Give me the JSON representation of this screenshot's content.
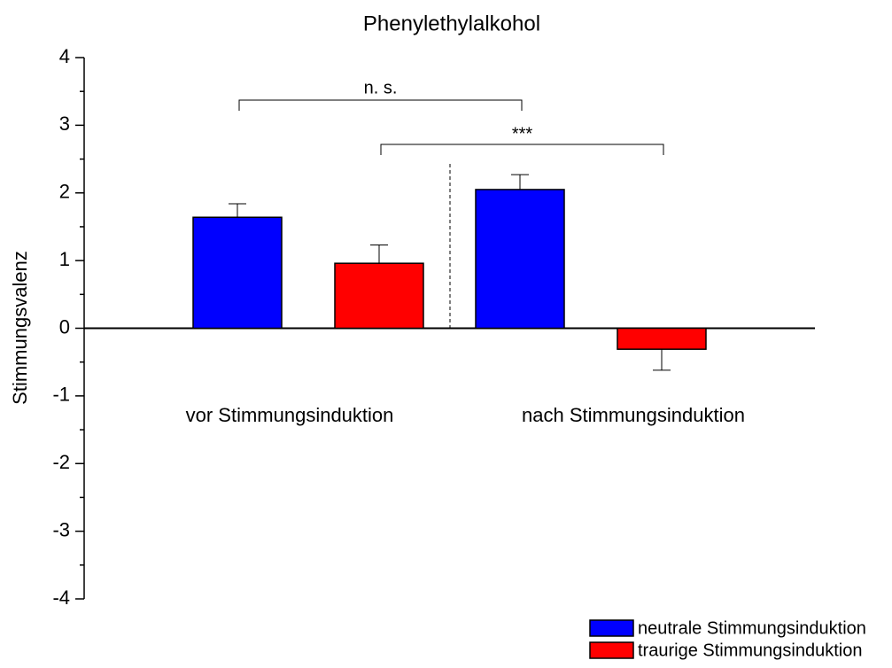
{
  "chart_data": {
    "type": "bar",
    "title": "Phenylethylalkohol",
    "ylabel": "Stimmungsvalenz",
    "categories": [
      "vor Stimmungsinduktion",
      "nach Stimmungsinduktion"
    ],
    "series": [
      {
        "name": "neutrale Stimmungsinduktion",
        "color": "#0000ff",
        "values": [
          1.64,
          2.05
        ],
        "errors": [
          0.2,
          0.22
        ]
      },
      {
        "name": "traurige Stimmungsinduktion",
        "color": "#ff0000",
        "values": [
          0.96,
          -0.31
        ],
        "errors": [
          0.27,
          0.31
        ]
      }
    ],
    "annotations": [
      "n. s.",
      "***"
    ],
    "ylim": [
      -4,
      4
    ],
    "yticks": [
      -4,
      -3,
      -2,
      -1,
      0,
      1,
      2,
      3,
      4
    ],
    "legend": "lower right"
  }
}
